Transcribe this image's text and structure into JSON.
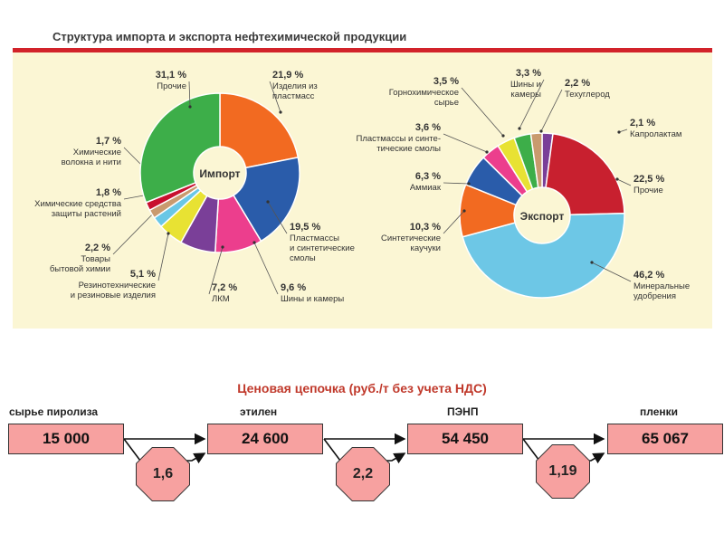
{
  "header": {
    "title": "Структура импорта и экспорта нефтехимической продукции"
  },
  "chart_data": [
    {
      "type": "pie",
      "center_label": "Импорт",
      "slices": [
        {
          "pct": "21,9 %",
          "value": 21.9,
          "label": [
            "Изделия из",
            "пластмасс"
          ],
          "color": "#f26a21"
        },
        {
          "pct": "19,5 %",
          "value": 19.5,
          "label": [
            "Пластмассы",
            "и синтетические",
            "смолы"
          ],
          "color": "#2a5caa"
        },
        {
          "pct": "9,6 %",
          "value": 9.6,
          "label": [
            "Шины и камеры"
          ],
          "color": "#ec3e8d"
        },
        {
          "pct": "7,2 %",
          "value": 7.2,
          "label": [
            "ЛКМ"
          ],
          "color": "#7a3f98"
        },
        {
          "pct": "5,1 %",
          "value": 5.1,
          "label": [
            "Резинотехнические",
            "и резиновые изделия"
          ],
          "color": "#e8e233"
        },
        {
          "pct": "2,2 %",
          "value": 2.2,
          "label": [
            "Товары",
            "бытовой химии"
          ],
          "color": "#69c7e6"
        },
        {
          "pct": "1,8 %",
          "value": 1.8,
          "label": [
            "Химические средства",
            "защиты растений"
          ],
          "color": "#c99a6e"
        },
        {
          "pct": "1,7 %",
          "value": 1.7,
          "label": [
            "Химические",
            "волокна и нити"
          ],
          "color": "#c8102e"
        },
        {
          "pct": "31,1 %",
          "value": 31.1,
          "label": [
            "Прочие"
          ],
          "color": "#3dae49"
        }
      ]
    },
    {
      "type": "pie",
      "center_label": "Экспорт",
      "slices": [
        {
          "pct": "2,1 %",
          "value": 2.1,
          "label": [
            "Капролактам"
          ],
          "color": "#7a3f98"
        },
        {
          "pct": "22,5 %",
          "value": 22.5,
          "label": [
            "Прочие"
          ],
          "color": "#c8202f"
        },
        {
          "pct": "46,2 %",
          "value": 46.2,
          "label": [
            "Минеральные",
            "удобрения"
          ],
          "color": "#6dc7e6"
        },
        {
          "pct": "10,3 %",
          "value": 10.3,
          "label": [
            "Синтетические",
            "каучуки"
          ],
          "color": "#f26a21"
        },
        {
          "pct": "6,3 %",
          "value": 6.3,
          "label": [
            "Аммиак"
          ],
          "color": "#2a5caa"
        },
        {
          "pct": "3,6 %",
          "value": 3.6,
          "label": [
            "Пластмассы и синте-",
            "тические смолы"
          ],
          "color": "#ec3e8d"
        },
        {
          "pct": "3,5 %",
          "value": 3.5,
          "label": [
            "Горнохимическое",
            "сырье"
          ],
          "color": "#e8e233"
        },
        {
          "pct": "3,3 %",
          "value": 3.3,
          "label": [
            "Шины и",
            "камеры"
          ],
          "color": "#3dae49"
        },
        {
          "pct": "2,2 %",
          "value": 2.2,
          "label": [
            "Техуглерод"
          ],
          "color": "#c99a6e"
        }
      ]
    }
  ],
  "price_chain": {
    "title": "Ценовая цепочка  (руб./т без учета НДС)",
    "stages": [
      {
        "label": "сырье пиролиза",
        "value": "15 000"
      },
      {
        "label": "этилен",
        "value": "24 600"
      },
      {
        "label": "ПЭНП",
        "value": "54 450"
      },
      {
        "label": "пленки",
        "value": "65 067"
      }
    ],
    "multipliers": [
      "1,6",
      "2,2",
      "1,19"
    ]
  }
}
